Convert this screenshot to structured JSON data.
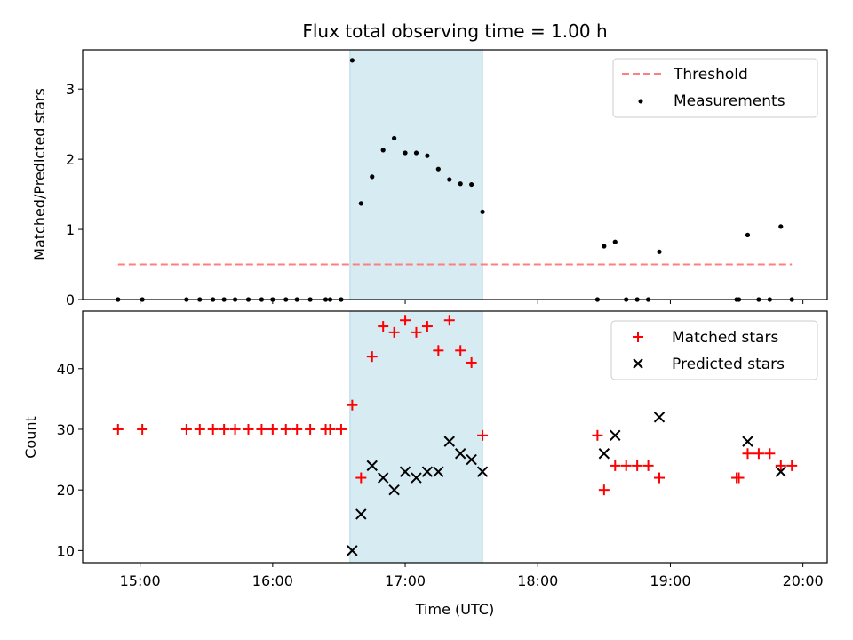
{
  "chart_data": [
    {
      "type": "scatter",
      "title": "Flux total observing time = 1.00 h",
      "xlabel": "",
      "ylabel": "Matched/Predicted stars",
      "xlim": [
        "14:34",
        "20:11"
      ],
      "ylim": [
        0,
        3.56
      ],
      "yticks": [
        0,
        1,
        2,
        3
      ],
      "legend_position": "top-right",
      "shaded_interval": {
        "start": "16:35",
        "end": "17:35",
        "color": "#add8e6"
      },
      "series": [
        {
          "name": "Threshold",
          "style": "dashed-line",
          "color": "#ff7f7f",
          "x": [
            "14:50",
            "19:55"
          ],
          "y": [
            0.5,
            0.5
          ]
        },
        {
          "name": "Measurements",
          "style": "dot",
          "color": "#000000",
          "x": [
            "14:50",
            "15:01",
            "15:21",
            "15:27",
            "15:33",
            "15:38",
            "15:43",
            "15:49",
            "15:55",
            "16:00",
            "16:06",
            "16:11",
            "16:17",
            "16:24",
            "16:26",
            "16:31",
            "16:36",
            "16:40",
            "16:45",
            "16:50",
            "16:55",
            "17:00",
            "17:05",
            "17:10",
            "17:15",
            "17:20",
            "17:25",
            "17:30",
            "17:35",
            "18:27",
            "18:30",
            "18:35",
            "18:40",
            "18:45",
            "18:50",
            "18:55",
            "19:30",
            "19:31",
            "19:35",
            "19:40",
            "19:45",
            "19:50",
            "19:55"
          ],
          "y": [
            0,
            0,
            0,
            0,
            0,
            0,
            0,
            0,
            0,
            0,
            0,
            0,
            0,
            0,
            0,
            0,
            3.41,
            1.37,
            1.75,
            2.13,
            2.3,
            2.09,
            2.09,
            2.05,
            1.86,
            1.71,
            1.65,
            1.64,
            1.25,
            0,
            0.76,
            0.82,
            0,
            0,
            0,
            0.68,
            0,
            0,
            0.92,
            0,
            0,
            1.04,
            0
          ]
        }
      ]
    },
    {
      "type": "scatter",
      "title": "",
      "xlabel": "Time (UTC)",
      "ylabel": "Count",
      "xlim": [
        "14:34",
        "20:11"
      ],
      "ylim": [
        8,
        49.5
      ],
      "yticks": [
        10,
        20,
        30,
        40
      ],
      "xticks": [
        "15:00",
        "16:00",
        "17:00",
        "18:00",
        "19:00",
        "20:00"
      ],
      "legend_position": "top-right",
      "shaded_interval": {
        "start": "16:35",
        "end": "17:35",
        "color": "#add8e6"
      },
      "series": [
        {
          "name": "Matched stars",
          "style": "plus",
          "color": "#ff0000",
          "x": [
            "14:50",
            "15:01",
            "15:21",
            "15:27",
            "15:33",
            "15:38",
            "15:43",
            "15:49",
            "15:55",
            "16:00",
            "16:06",
            "16:11",
            "16:17",
            "16:24",
            "16:26",
            "16:31",
            "16:36",
            "16:40",
            "16:45",
            "16:50",
            "16:55",
            "17:00",
            "17:05",
            "17:10",
            "17:15",
            "17:20",
            "17:25",
            "17:30",
            "17:35",
            "18:27",
            "18:30",
            "18:35",
            "18:40",
            "18:45",
            "18:50",
            "18:55",
            "19:30",
            "19:31",
            "19:35",
            "19:40",
            "19:45",
            "19:50",
            "19:55"
          ],
          "y": [
            30,
            30,
            30,
            30,
            30,
            30,
            30,
            30,
            30,
            30,
            30,
            30,
            30,
            30,
            30,
            30,
            34,
            22,
            42,
            47,
            46,
            48,
            46,
            47,
            43,
            48,
            43,
            41,
            29,
            29,
            20,
            24,
            24,
            24,
            24,
            22,
            22,
            22,
            26,
            26,
            26,
            24,
            24
          ]
        },
        {
          "name": "Predicted stars",
          "style": "cross",
          "color": "#000000",
          "x": [
            "16:36",
            "16:40",
            "16:45",
            "16:50",
            "16:55",
            "17:00",
            "17:05",
            "17:10",
            "17:15",
            "17:20",
            "17:25",
            "17:30",
            "17:35",
            "18:30",
            "18:35",
            "18:55",
            "19:35",
            "19:50"
          ],
          "y": [
            10,
            16,
            24,
            22,
            20,
            23,
            22,
            23,
            23,
            28,
            26,
            25,
            23,
            26,
            29,
            32,
            28,
            23
          ]
        }
      ]
    }
  ]
}
